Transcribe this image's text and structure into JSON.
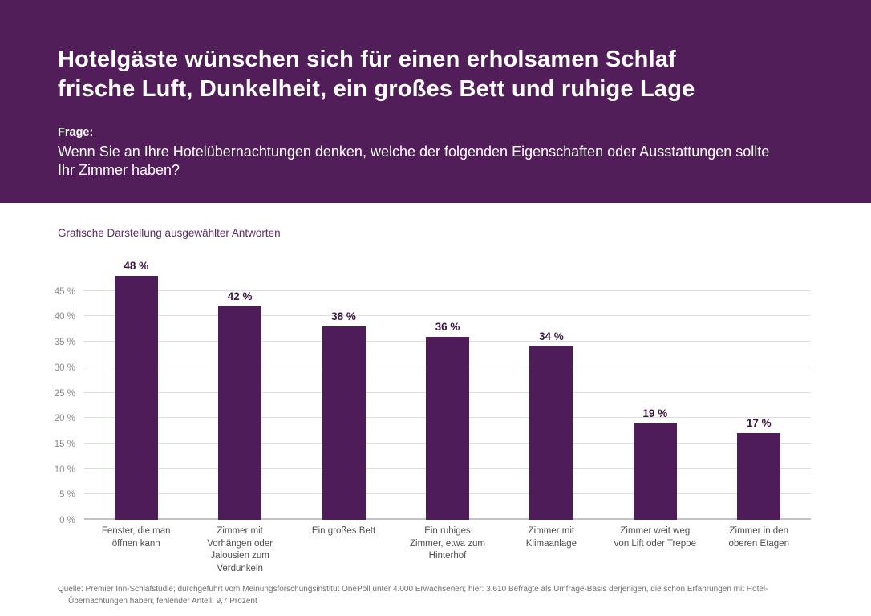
{
  "colors": {
    "header_bg": "#511E59",
    "header_text": "#FFFFFF",
    "bar": "#4E1C58",
    "value_label": "#3A1640",
    "subtitle_text": "#5C2A66",
    "axis_label": "#8A8A8A",
    "category_label": "#4F4F4F",
    "gridline": "#DEDEDE",
    "baseline": "#C4C4C4",
    "footnote_text": "#707070"
  },
  "header": {
    "title": "Hotelgäste wünschen sich für einen erholsamen Schlaf frische Luft, Dunkelheit, ein großes Bett und ruhige Lage",
    "title_lines": [
      "Hotelgäste wünschen sich für einen erholsamen Schlaf",
      "frische Luft, Dunkelheit, ein großes Bett und ruhige Lage"
    ],
    "question_label": "Frage:",
    "question": "Wenn Sie an Ihre Hotelübernachtungen denken, welche der folgenden Eigenschaften oder Ausstattungen sollte Ihr Zimmer haben?",
    "question_lines": [
      "Wenn Sie an Ihre Hotelübernachtungen denken, welche der folgenden Eigenschaften oder Ausstattungen sollte",
      "Ihr Zimmer haben?"
    ]
  },
  "chart_data": {
    "type": "bar",
    "title": "Grafische Darstellung ausgewählter Antworten",
    "xlabel": "",
    "ylabel": "",
    "categories": [
      "Fenster, die man öffnen kann",
      "Zimmer mit Vorhängen oder Jalousien zum Verdunkeln",
      "Ein großes Bett",
      "Ein ruhiges Zimmer, etwa zum Hinterhof",
      "Zimmer mit Klimaanlage",
      "Zimmer weit weg von Lift oder Treppe",
      "Zimmer in den oberen Etagen"
    ],
    "categories_lines": [
      [
        "Fenster, die man",
        "öffnen kann"
      ],
      [
        "Zimmer mit",
        "Vorhängen oder",
        "Jalousien zum",
        "Verdunkeln"
      ],
      [
        "Ein großes Bett"
      ],
      [
        "Ein ruhiges",
        "Zimmer, etwa zum",
        "Hinterhof"
      ],
      [
        "Zimmer mit",
        "Klimaanlage"
      ],
      [
        "Zimmer weit weg",
        "von Lift oder Treppe"
      ],
      [
        "Zimmer in den",
        "oberen Etagen"
      ]
    ],
    "values": [
      48,
      42,
      38,
      36,
      34,
      19,
      17
    ],
    "value_suffix": " %",
    "ylim": [
      0,
      50
    ],
    "yticks": [
      0,
      5,
      10,
      15,
      20,
      25,
      30,
      35,
      40,
      45
    ],
    "ytick_suffix": " %",
    "grid": true,
    "legend": false
  },
  "footnote": "Quelle: Premier Inn-Schlafstudie; durchgeführt vom Meinungsforschungsinstitut OnePoll unter 4.000 Erwachsenen; hier: 3.610 Befragte als Umfrage-Basis derjenigen, die schon Erfahrungen mit Hotel-Übernachtungen haben; fehlender Anteil: 9,7 Prozent"
}
